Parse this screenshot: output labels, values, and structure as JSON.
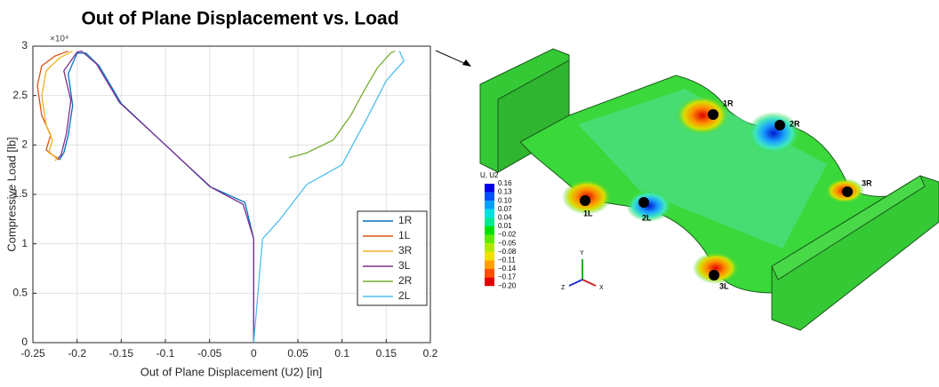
{
  "chart_data": {
    "type": "line",
    "title": "Out of Plane Displacement vs. Load",
    "y_multiplier": "×10⁴",
    "x_label": "Out of Plane Displacement (U2) [in]",
    "y_label": "Compressive Load [lb]",
    "xlim": [
      -0.25,
      0.2
    ],
    "ylim": [
      0,
      3
    ],
    "xticks": [
      -0.25,
      -0.2,
      -0.15,
      -0.1,
      -0.05,
      0,
      0.05,
      0.1,
      0.15,
      0.2
    ],
    "yticks": [
      0,
      0.5,
      1,
      1.5,
      2,
      2.5,
      3
    ],
    "grid": true,
    "legend": "lower-right",
    "series": [
      {
        "name": "1R",
        "color": "#0072BD",
        "x": [
          0,
          0,
          -0.01,
          -0.05,
          -0.1,
          -0.15,
          -0.175,
          -0.19,
          -0.2,
          -0.21,
          -0.205,
          -0.21,
          -0.215,
          -0.22
        ],
        "values": [
          0,
          1.05,
          1.42,
          1.58,
          2.0,
          2.42,
          2.8,
          2.93,
          2.93,
          2.72,
          2.4,
          2.1,
          1.92,
          1.85
        ]
      },
      {
        "name": "1L",
        "color": "#D95319",
        "x": [
          -0.21,
          -0.225,
          -0.24,
          -0.245,
          -0.24,
          -0.23,
          -0.235,
          -0.225,
          -0.22
        ],
        "values": [
          2.95,
          2.9,
          2.8,
          2.6,
          2.3,
          2.1,
          1.95,
          1.88,
          1.85
        ]
      },
      {
        "name": "3R",
        "color": "#EDB120",
        "x": [
          -0.205,
          -0.22,
          -0.235,
          -0.24,
          -0.235,
          -0.228,
          -0.232,
          -0.222,
          -0.225
        ],
        "values": [
          2.95,
          2.88,
          2.75,
          2.5,
          2.2,
          2.05,
          1.92,
          1.87,
          1.84
        ]
      },
      {
        "name": "3L",
        "color": "#7E2F8E",
        "x": [
          0,
          0,
          -0.012,
          -0.048,
          -0.1,
          -0.152,
          -0.178,
          -0.195,
          -0.2,
          -0.215,
          -0.207,
          -0.212,
          -0.218,
          -0.222
        ],
        "values": [
          0,
          1.05,
          1.4,
          1.57,
          2.0,
          2.43,
          2.82,
          2.95,
          2.94,
          2.75,
          2.45,
          2.12,
          1.9,
          1.86
        ]
      },
      {
        "name": "2R",
        "color": "#77AC30",
        "x": [
          0.04,
          0.06,
          0.09,
          0.11,
          0.125,
          0.14,
          0.155,
          0.16
        ],
        "values": [
          1.87,
          1.92,
          2.05,
          2.3,
          2.55,
          2.78,
          2.93,
          2.95
        ]
      },
      {
        "name": "2L",
        "color": "#4DBEEE",
        "x": [
          0,
          0.01,
          0.03,
          0.06,
          0.1,
          0.13,
          0.15,
          0.17,
          0.165
        ],
        "values": [
          0,
          1.05,
          1.25,
          1.6,
          1.8,
          2.3,
          2.65,
          2.85,
          2.95
        ]
      }
    ]
  },
  "figure": {
    "legend_title": "U, U2",
    "contour_labels": [
      "0.16",
      "0.13",
      "0.10",
      "0.07",
      "0.04",
      "0.01",
      "−0.02",
      "−0.05",
      "−0.08",
      "−0.11",
      "−0.14",
      "−0.17",
      "−0.20"
    ],
    "point_labels": [
      "1R",
      "2R",
      "3R",
      "1L",
      "2L",
      "3L"
    ],
    "axes_labels": [
      "Y",
      "Z",
      "X"
    ]
  }
}
